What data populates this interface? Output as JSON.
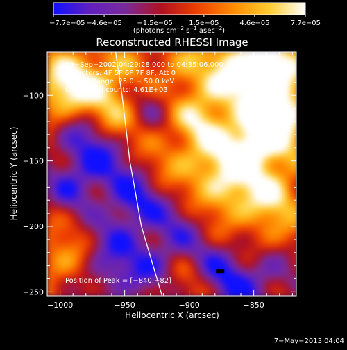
{
  "chart_data": {
    "type": "heatmap",
    "title": "Reconstructed RHESSI Image",
    "xlabel": "Heliocentric X (arcsec)",
    "ylabel": "Heliocentric Y (arcsec)",
    "xlim": [
      -1010,
      -817
    ],
    "ylim": [
      -253,
      -67
    ],
    "x_ticks": [
      {
        "value": -1000,
        "label": "−1000"
      },
      {
        "value": -950,
        "label": "−950"
      },
      {
        "value": -900,
        "label": "−900"
      },
      {
        "value": -850,
        "label": "−850"
      }
    ],
    "y_ticks": [
      {
        "value": -100,
        "label": "−100"
      },
      {
        "value": -150,
        "label": "−150"
      },
      {
        "value": -200,
        "label": "−200"
      },
      {
        "value": -250,
        "label": "−250"
      }
    ],
    "colorbar": {
      "label_parts": [
        "(photons cm",
        "−2",
        " s",
        "−1",
        " asec",
        "−2",
        ")"
      ],
      "range": [
        -7.7e-05,
        7.7e-05
      ],
      "tick_values": [
        -7.7e-05,
        -4.6e-05,
        -1.5e-05,
        1.5e-05,
        4.6e-05,
        7.7e-05
      ],
      "tick_labels": [
        "−7.7e−05",
        "−4.6e−05",
        "−1.5e−05",
        "1.5e−05",
        "4.6e−05",
        "7.7e−05"
      ],
      "colors": [
        "#1010ff",
        "#6020c0",
        "#7a2a9a",
        "#b01020",
        "#ee4000",
        "#ff8c00",
        "#ffcc30",
        "#ffffff"
      ]
    },
    "annotations": [
      "19−Sep−2002 04:29:28.000 to 04:35:06.000",
      "Detectors: 4F 5F 6F 7F 8F, Att 0",
      "Energy Range: 25.0 − 50.0 keV",
      "Clean     Total counts: 4.61E+03"
    ],
    "peak": {
      "text": "Position of Peak = [−840,−82]",
      "x": -840,
      "y": -82
    },
    "limb_curve": [
      [
        -957,
        -67
      ],
      [
        -952,
        -100
      ],
      [
        -946,
        -150
      ],
      [
        -937,
        -200
      ],
      [
        -921,
        -253
      ]
    ],
    "intensity_blobs": [
      {
        "x": -1000,
        "y": -100,
        "w": 0.8
      },
      {
        "x": -985,
        "y": -85,
        "w": 0.6
      },
      {
        "x": -962,
        "y": -118,
        "w": 0.6
      },
      {
        "x": -955,
        "y": -90,
        "w": 0.5
      },
      {
        "x": -930,
        "y": -100,
        "w": -0.5
      },
      {
        "x": -910,
        "y": -80,
        "w": 0.6
      },
      {
        "x": -892,
        "y": -122,
        "w": 0.7
      },
      {
        "x": -880,
        "y": -95,
        "w": 0.4
      },
      {
        "x": -860,
        "y": -80,
        "w": 0.9
      },
      {
        "x": -838,
        "y": -82,
        "w": 1.0
      },
      {
        "x": -830,
        "y": -110,
        "w": 0.8
      },
      {
        "x": -840,
        "y": -130,
        "w": 1.0
      },
      {
        "x": -860,
        "y": -145,
        "w": 0.9
      },
      {
        "x": -890,
        "y": -160,
        "w": 0.5
      },
      {
        "x": -870,
        "y": -180,
        "w": 0.6
      },
      {
        "x": -835,
        "y": -175,
        "w": 0.7
      },
      {
        "x": -840,
        "y": -205,
        "w": 0.3
      },
      {
        "x": -985,
        "y": -130,
        "w": -0.6
      },
      {
        "x": -970,
        "y": -150,
        "w": -0.7
      },
      {
        "x": -945,
        "y": -180,
        "w": -0.9
      },
      {
        "x": -990,
        "y": -175,
        "w": -0.7
      },
      {
        "x": -965,
        "y": -210,
        "w": -0.6
      },
      {
        "x": -960,
        "y": -240,
        "w": -0.5
      },
      {
        "x": -930,
        "y": -230,
        "w": -0.6
      },
      {
        "x": -910,
        "y": -200,
        "w": -0.5
      },
      {
        "x": -880,
        "y": -230,
        "w": -0.5
      },
      {
        "x": -870,
        "y": -250,
        "w": -0.6
      },
      {
        "x": -840,
        "y": -240,
        "w": -0.5
      },
      {
        "x": -1000,
        "y": -225,
        "w": 0.5
      },
      {
        "x": -920,
        "y": -150,
        "w": 0.3
      },
      {
        "x": -975,
        "y": -190,
        "w": 0.4
      },
      {
        "x": -900,
        "y": -245,
        "w": 0.3
      }
    ]
  },
  "footer": {
    "date": "7−May−2013 04:04"
  }
}
